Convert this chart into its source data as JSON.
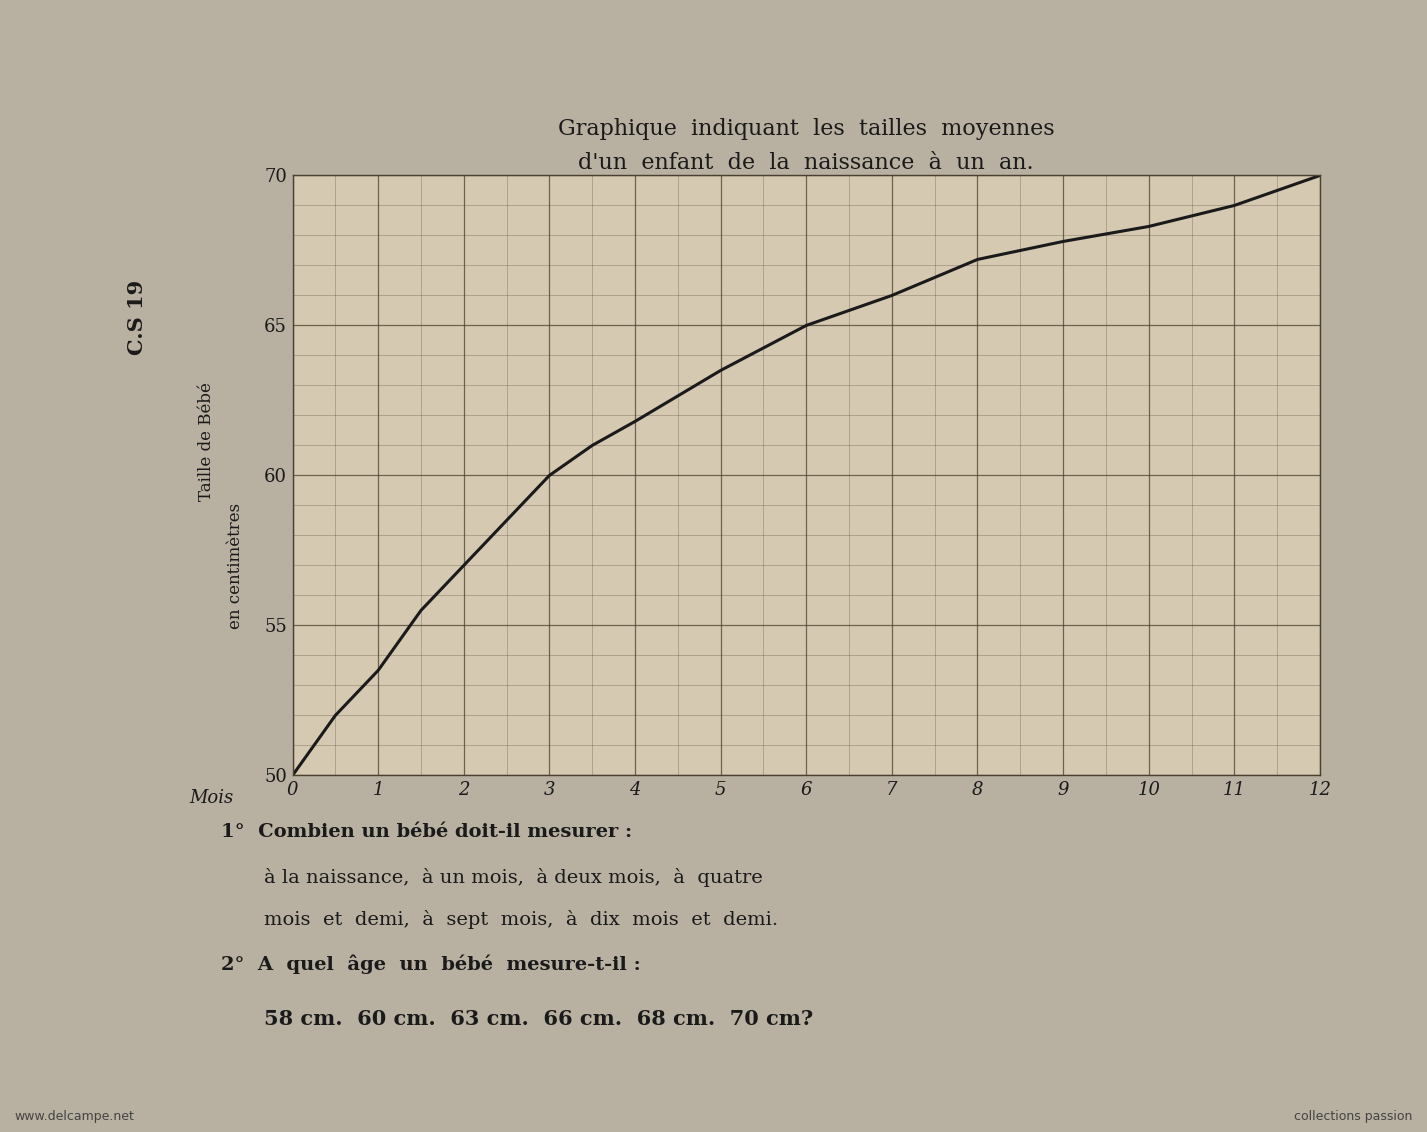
{
  "title_line1": "Graphique  indiquant  les  tailles  moyennes",
  "title_line2": "d'un  enfant  de  la  naissance  à  un  an.",
  "side_label": "C.S 19",
  "ylabel_line1": "Taille de Bébé",
  "ylabel_line2": "en centimètres",
  "xlabel": "Mois",
  "x_data": [
    0,
    0.5,
    1,
    1.5,
    2,
    2.5,
    3,
    3.5,
    4,
    5,
    6,
    7,
    8,
    9,
    10,
    11,
    12
  ],
  "y_data": [
    50,
    52.0,
    53.5,
    55.5,
    57.0,
    58.5,
    60.0,
    61.0,
    61.8,
    63.5,
    65.0,
    66.0,
    67.2,
    67.8,
    68.3,
    69.0,
    70.0
  ],
  "xlim": [
    0,
    12
  ],
  "ylim": [
    50,
    70
  ],
  "yticks": [
    50,
    55,
    60,
    65,
    70
  ],
  "xticks": [
    0,
    1,
    2,
    3,
    4,
    5,
    6,
    7,
    8,
    9,
    10,
    11,
    12
  ],
  "question1_line1": "1°  Combien un bébé doit-il mesurer :",
  "question1_line2": "à la naissance,  à un mois,  à deux mois,  à  quatre",
  "question1_line3": "mois  et  demi,  à  sept  mois,  à  dix  mois  et  demi.",
  "question2_line1": "2°  A  quel  âge  un  bébé  mesure-t-il :",
  "question2_line2": "58 cm.  60 cm.  63 cm.  66 cm.  68 cm.  70 cm?",
  "bg_color": "#d6c9b2",
  "outer_bg": "#b8b0a0",
  "line_color": "#1a1a1a",
  "grid_color": "#4a4030",
  "text_color": "#1a1a1a",
  "watermark_left": "www.delcampe.net",
  "watermark_right": "collections passion"
}
